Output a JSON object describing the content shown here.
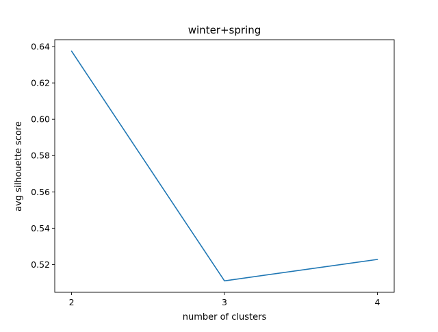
{
  "chart_data": {
    "type": "line",
    "title": "winter+spring",
    "xlabel": "number of clusters",
    "ylabel": "avg silhouette score",
    "x": [
      2,
      3,
      4
    ],
    "series": [
      {
        "values": [
          0.6375,
          0.511,
          0.5228
        ],
        "color": "#1f77b4"
      }
    ],
    "xlim": [
      1.89,
      4.11
    ],
    "ylim": [
      0.5047,
      0.6438
    ],
    "xticks": [
      "2",
      "3",
      "4"
    ],
    "xtick_values": [
      2,
      3,
      4
    ],
    "yticks": [
      "0.52",
      "0.54",
      "0.56",
      "0.58",
      "0.60",
      "0.62",
      "0.64"
    ],
    "ytick_values": [
      0.52,
      0.54,
      0.56,
      0.58,
      0.6,
      0.62,
      0.64
    ],
    "grid": false,
    "legend": "none"
  }
}
